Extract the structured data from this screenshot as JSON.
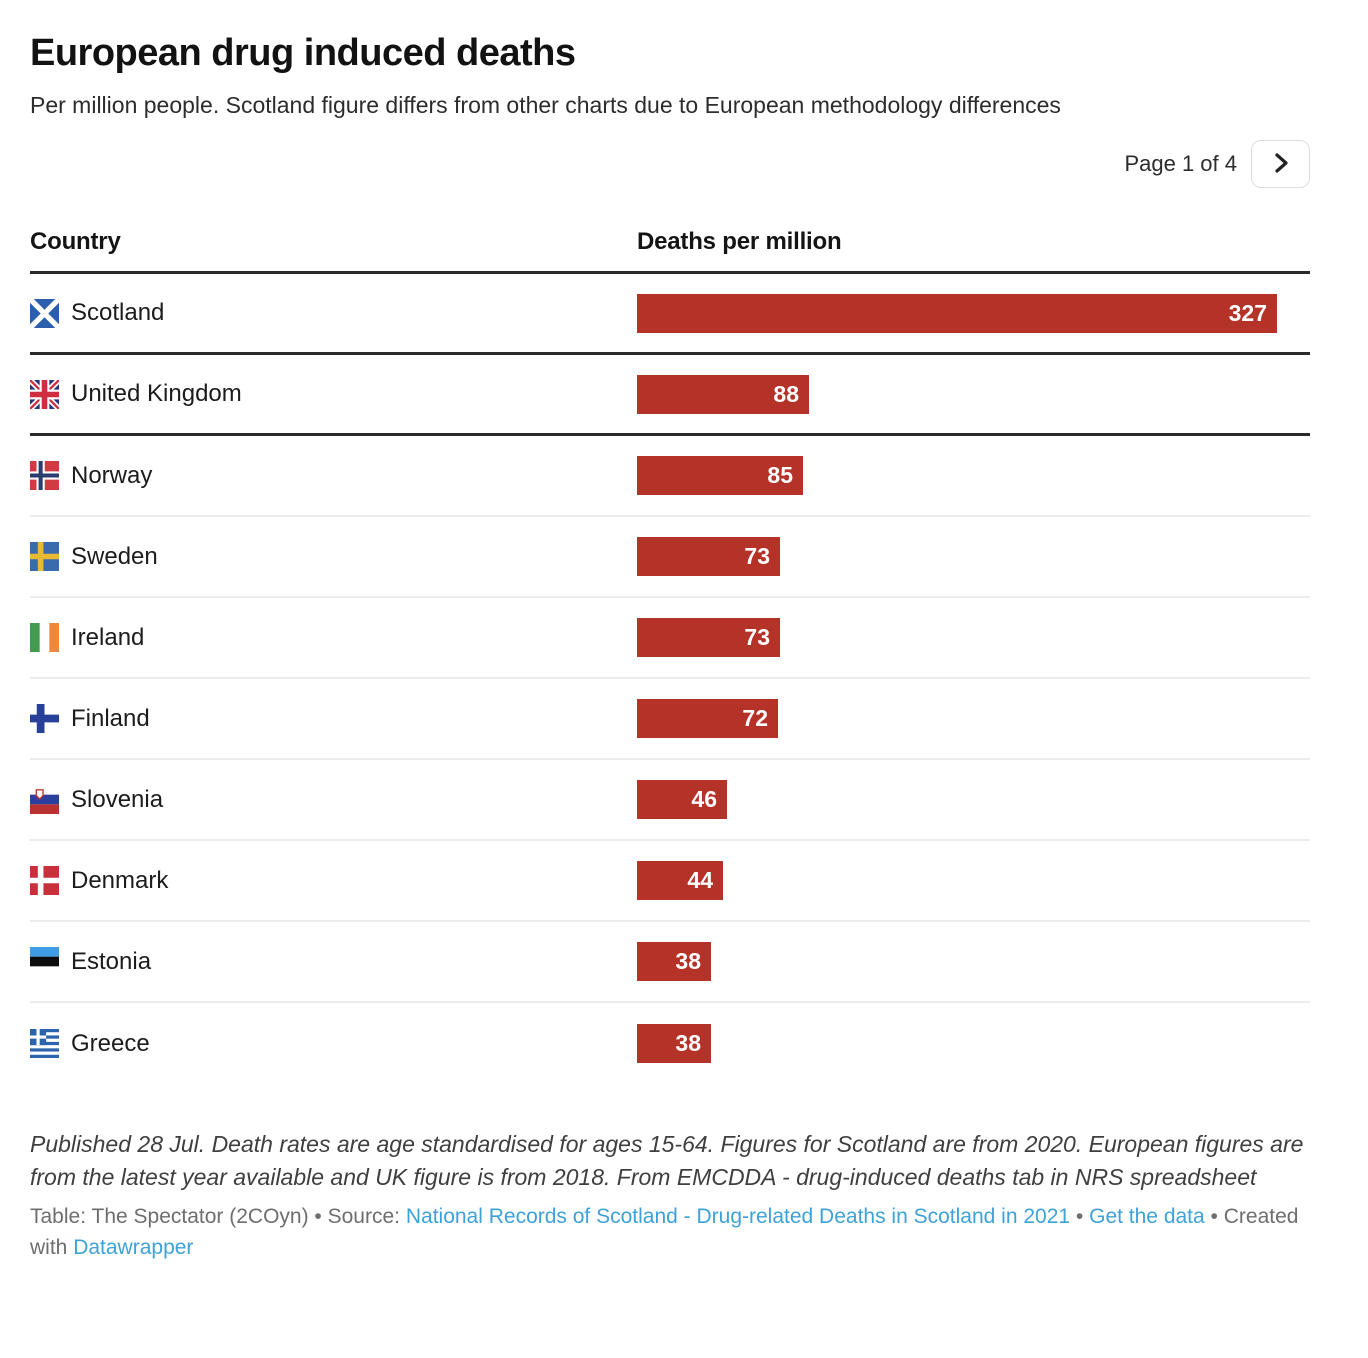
{
  "header": {
    "title": "European drug induced deaths",
    "subtitle": "Per million people. Scotland figure differs from other charts due to European methodology differences",
    "pagination": {
      "label": "Page 1 of 4"
    }
  },
  "table": {
    "columns": {
      "country": "Country",
      "value": "Deaths per million"
    }
  },
  "chart_data": {
    "type": "bar",
    "orientation": "horizontal",
    "title": "European drug induced deaths",
    "subtitle": "Per million people. Scotland figure differs from other charts due to European methodology differences",
    "xlabel": "Deaths per million",
    "xlim": [
      0,
      327
    ],
    "bar_color": "#b53228",
    "value_label_position": "inside-end",
    "categories": [
      "Scotland",
      "United Kingdom",
      "Norway",
      "Sweden",
      "Ireland",
      "Finland",
      "Slovenia",
      "Denmark",
      "Estonia",
      "Greece"
    ],
    "values": [
      327,
      88,
      85,
      73,
      73,
      72,
      46,
      44,
      38,
      38
    ],
    "flags": [
      "scotland",
      "united-kingdom",
      "norway",
      "sweden",
      "ireland",
      "finland",
      "slovenia",
      "denmark",
      "estonia",
      "greece"
    ],
    "dividers": [
      "thick",
      "thick",
      "thin",
      "thin",
      "thin",
      "thin",
      "thin",
      "thin",
      "thin",
      "none"
    ]
  },
  "footer": {
    "notes": "Published 28 Jul. Death rates are age standardised for ages 15-64. Figures for Scotland are from 2020. European figures are from the latest year available and UK figure is from 2018. From EMCDDA - drug-induced deaths tab in NRS spreadsheet",
    "attribution": {
      "table_label": "Table: The Spectator (2COyn)",
      "sep1": "•",
      "source_label": "Source:",
      "source_link": "National Records of Scotland - Drug-related Deaths in Scotland in 2021",
      "sep2": "•",
      "get_data_link": "Get the data",
      "sep3": "•",
      "created_with": "Created with",
      "tool_link": "Datawrapper"
    }
  },
  "colors": {
    "bar": "#b53228",
    "link": "#3da2d8",
    "divider_thick": "#2a2a2a",
    "divider_thin": "#ececec"
  }
}
